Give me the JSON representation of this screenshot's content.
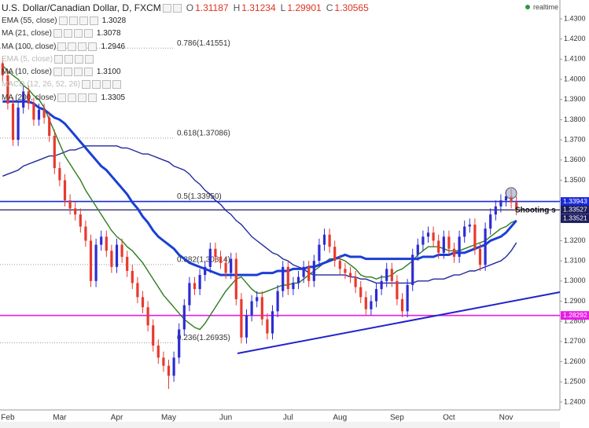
{
  "legend": {
    "symbol": "U.S. Dollar/Canadian Dollar, D, FXCM",
    "ohlc": [
      {
        "k": "O",
        "v": "1.31187"
      },
      {
        "k": "H",
        "v": "1.31234"
      },
      {
        "k": "L",
        "v": "1.29901"
      },
      {
        "k": "C",
        "v": "1.30565"
      }
    ],
    "indicators": [
      {
        "name": "EMA (55, close)",
        "value": "1.3028",
        "faded": false
      },
      {
        "name": "MA (21, close)",
        "value": "1.3078",
        "faded": false
      },
      {
        "name": "MA (100, close)",
        "value": "1.2946",
        "faded": false
      },
      {
        "name": "EMA (5, close)",
        "faded": true
      },
      {
        "name": "MA (10, close)",
        "value": "1.3100",
        "faded": false
      },
      {
        "name": "MACD (12, 26, 52, 26)",
        "faded": true
      },
      {
        "name": "MA (200, close)",
        "value": "1.3305",
        "faded": false
      }
    ],
    "status": "realtime"
  },
  "chart_data": {
    "type": "candlestick",
    "categories": [
      null,
      "Feb",
      null,
      null,
      null,
      null,
      null,
      null,
      null,
      null,
      null,
      "Mar",
      null,
      null,
      null,
      null,
      null,
      null,
      null,
      null,
      null,
      null,
      "Apr",
      null,
      null,
      null,
      null,
      null,
      null,
      null,
      null,
      null,
      "May",
      null,
      null,
      null,
      null,
      null,
      null,
      null,
      null,
      null,
      null,
      "Jun",
      null,
      null,
      null,
      null,
      null,
      null,
      null,
      null,
      null,
      null,
      null,
      "Jul",
      null,
      null,
      null,
      null,
      null,
      null,
      null,
      null,
      null,
      "Aug",
      null,
      null,
      null,
      null,
      null,
      null,
      null,
      null,
      null,
      null,
      "Sep",
      null,
      null,
      null,
      null,
      null,
      null,
      null,
      null,
      null,
      "Oct",
      null,
      null,
      null,
      null,
      null,
      null,
      null,
      null,
      null,
      null,
      "Nov",
      null,
      null
    ],
    "open": [
      1.408,
      1.402,
      1.388,
      1.37,
      1.386,
      1.394,
      1.388,
      1.38,
      1.385,
      1.381,
      1.372,
      1.356,
      1.35,
      1.34,
      1.336,
      1.333,
      1.327,
      1.32,
      1.3,
      1.318,
      1.322,
      1.315,
      1.307,
      1.318,
      1.312,
      1.305,
      1.299,
      1.292,
      1.287,
      1.278,
      1.268,
      1.262,
      1.258,
      1.253,
      1.262,
      1.276,
      1.288,
      1.299,
      1.296,
      1.303,
      1.307,
      1.316,
      1.312,
      1.309,
      1.304,
      1.311,
      1.291,
      1.272,
      1.283,
      1.29,
      1.292,
      1.281,
      1.274,
      1.285,
      1.295,
      1.307,
      1.296,
      1.299,
      1.302,
      1.307,
      1.3,
      1.31,
      1.318,
      1.323,
      1.317,
      1.31,
      1.306,
      1.304,
      1.302,
      1.297,
      1.292,
      1.286,
      1.29,
      1.296,
      1.3,
      1.306,
      1.3,
      1.291,
      1.285,
      1.298,
      1.313,
      1.318,
      1.322,
      1.324,
      1.32,
      1.314,
      1.322,
      1.316,
      1.312,
      1.322,
      1.327,
      1.328,
      1.316,
      1.308,
      1.326,
      1.333,
      1.337,
      1.34,
      1.342,
      1.339
    ],
    "high": [
      1.411,
      1.405,
      1.391,
      1.389,
      1.397,
      1.397,
      1.391,
      1.388,
      1.388,
      1.384,
      1.375,
      1.359,
      1.353,
      1.343,
      1.339,
      1.336,
      1.33,
      1.323,
      1.321,
      1.325,
      1.325,
      1.318,
      1.321,
      1.321,
      1.315,
      1.308,
      1.302,
      1.295,
      1.29,
      1.281,
      1.271,
      1.265,
      1.261,
      1.265,
      1.279,
      1.291,
      1.302,
      1.302,
      1.306,
      1.31,
      1.319,
      1.319,
      1.315,
      1.312,
      1.314,
      1.314,
      1.294,
      1.286,
      1.293,
      1.295,
      1.295,
      1.284,
      1.288,
      1.298,
      1.31,
      1.31,
      1.302,
      1.305,
      1.31,
      1.31,
      1.313,
      1.321,
      1.326,
      1.326,
      1.32,
      1.313,
      1.309,
      1.307,
      1.305,
      1.3,
      1.295,
      1.293,
      1.299,
      1.303,
      1.309,
      1.309,
      1.303,
      1.294,
      1.301,
      1.316,
      1.321,
      1.325,
      1.327,
      1.327,
      1.323,
      1.325,
      1.325,
      1.319,
      1.325,
      1.33,
      1.331,
      1.331,
      1.319,
      1.329,
      1.336,
      1.34,
      1.343,
      1.345,
      1.3455,
      1.342
    ],
    "low": [
      1.399,
      1.385,
      1.367,
      1.367,
      1.383,
      1.385,
      1.377,
      1.377,
      1.378,
      1.369,
      1.353,
      1.347,
      1.337,
      1.333,
      1.33,
      1.324,
      1.317,
      1.297,
      1.297,
      1.315,
      1.312,
      1.304,
      1.304,
      1.309,
      1.302,
      1.296,
      1.289,
      1.284,
      1.275,
      1.265,
      1.259,
      1.255,
      1.2465,
      1.25,
      1.259,
      1.273,
      1.285,
      1.293,
      1.293,
      1.3,
      1.304,
      1.309,
      1.306,
      1.301,
      1.301,
      1.288,
      1.269,
      1.269,
      1.28,
      1.287,
      1.278,
      1.271,
      1.271,
      1.282,
      1.292,
      1.293,
      1.293,
      1.296,
      1.299,
      1.297,
      1.297,
      1.307,
      1.315,
      1.314,
      1.307,
      1.303,
      1.301,
      1.299,
      1.294,
      1.289,
      1.283,
      1.283,
      1.287,
      1.293,
      1.297,
      1.297,
      1.288,
      1.282,
      1.282,
      1.295,
      1.31,
      1.315,
      1.319,
      1.317,
      1.311,
      1.311,
      1.313,
      1.309,
      1.309,
      1.319,
      1.324,
      1.313,
      1.305,
      1.305,
      1.323,
      1.33,
      1.334,
      1.337,
      1.336,
      1.3327
    ],
    "close": [
      1.402,
      1.388,
      1.37,
      1.386,
      1.394,
      1.388,
      1.38,
      1.385,
      1.381,
      1.372,
      1.356,
      1.35,
      1.34,
      1.336,
      1.333,
      1.327,
      1.32,
      1.3,
      1.318,
      1.322,
      1.315,
      1.307,
      1.318,
      1.312,
      1.305,
      1.299,
      1.292,
      1.287,
      1.278,
      1.268,
      1.262,
      1.258,
      1.253,
      1.262,
      1.276,
      1.288,
      1.299,
      1.296,
      1.303,
      1.307,
      1.316,
      1.312,
      1.309,
      1.304,
      1.311,
      1.291,
      1.272,
      1.283,
      1.29,
      1.292,
      1.281,
      1.274,
      1.285,
      1.295,
      1.307,
      1.296,
      1.299,
      1.302,
      1.307,
      1.3,
      1.31,
      1.318,
      1.323,
      1.317,
      1.31,
      1.306,
      1.304,
      1.302,
      1.297,
      1.292,
      1.286,
      1.29,
      1.296,
      1.3,
      1.306,
      1.3,
      1.291,
      1.285,
      1.298,
      1.313,
      1.318,
      1.322,
      1.324,
      1.32,
      1.314,
      1.322,
      1.316,
      1.312,
      1.322,
      1.327,
      1.328,
      1.316,
      1.308,
      1.326,
      1.333,
      1.337,
      1.34,
      1.342,
      1.339,
      1.3357
    ],
    "up_color": "#2c2cd4",
    "down_color": "#e8392e",
    "series": [
      {
        "color": "#1f2a9c",
        "width": 1.4,
        "values": [
          1.352,
          1.353,
          1.354,
          1.355,
          1.357,
          1.358,
          1.359,
          1.36,
          1.361,
          1.362,
          1.362,
          1.363,
          1.364,
          1.365,
          1.365,
          1.366,
          1.367,
          1.367,
          1.367,
          1.367,
          1.367,
          1.367,
          1.367,
          1.366,
          1.366,
          1.365,
          1.364,
          1.363,
          1.363,
          1.362,
          1.361,
          1.36,
          1.359,
          1.357,
          1.356,
          1.355,
          1.353,
          1.35,
          1.348,
          1.345,
          1.343,
          1.34,
          1.338,
          1.335,
          1.333,
          1.33,
          1.328,
          1.325,
          1.322,
          1.32,
          1.318,
          1.316,
          1.314,
          1.313,
          1.311,
          1.31,
          1.308,
          1.307,
          1.306,
          1.304,
          1.303,
          1.303,
          1.303,
          1.303,
          1.303,
          1.303,
          1.303,
          1.302,
          1.302,
          1.301,
          1.301,
          1.3,
          1.299,
          1.299,
          1.299,
          1.299,
          1.299,
          1.299,
          1.299,
          1.299,
          1.3,
          1.3,
          1.3,
          1.301,
          1.301,
          1.301,
          1.302,
          1.303,
          1.303,
          1.304,
          1.305,
          1.305,
          1.306,
          1.307,
          1.308,
          1.309,
          1.31,
          1.312,
          1.315,
          1.319
        ]
      },
      {
        "color": "#2e7d1e",
        "width": 1.4,
        "values": [
          1.407,
          1.404,
          1.402,
          1.4,
          1.397,
          1.395,
          1.392,
          1.39,
          1.386,
          1.38,
          1.374,
          1.368,
          1.362,
          1.358,
          1.354,
          1.35,
          1.345,
          1.341,
          1.337,
          1.333,
          1.329,
          1.325,
          1.322,
          1.32,
          1.317,
          1.315,
          1.312,
          1.309,
          1.305,
          1.301,
          1.297,
          1.293,
          1.29,
          1.287,
          1.284,
          1.281,
          1.279,
          1.277,
          1.276,
          1.279,
          1.283,
          1.287,
          1.291,
          1.295,
          1.298,
          1.301,
          1.302,
          1.299,
          1.296,
          1.294,
          1.294,
          1.295,
          1.296,
          1.297,
          1.298,
          1.298,
          1.299,
          1.299,
          1.301,
          1.303,
          1.305,
          1.307,
          1.309,
          1.311,
          1.311,
          1.311,
          1.31,
          1.308,
          1.306,
          1.303,
          1.302,
          1.302,
          1.301,
          1.302,
          1.302,
          1.303,
          1.305,
          1.306,
          1.308,
          1.31,
          1.313,
          1.315,
          1.317,
          1.317,
          1.317,
          1.316,
          1.315,
          1.315,
          1.315,
          1.316,
          1.317,
          1.318,
          1.319,
          1.32,
          1.322,
          1.324,
          1.326,
          1.327,
          1.329,
          1.33
        ]
      },
      {
        "color": "#1a3fd6",
        "width": 3,
        "values": [
          1.389,
          1.389,
          1.389,
          1.389,
          1.389,
          1.389,
          1.388,
          1.386,
          1.385,
          1.383,
          1.381,
          1.38,
          1.378,
          1.375,
          1.372,
          1.369,
          1.366,
          1.363,
          1.36,
          1.357,
          1.355,
          1.352,
          1.349,
          1.346,
          1.343,
          1.339,
          1.336,
          1.332,
          1.329,
          1.325,
          1.322,
          1.32,
          1.318,
          1.316,
          1.313,
          1.311,
          1.309,
          1.308,
          1.307,
          1.306,
          1.305,
          1.304,
          1.303,
          1.303,
          1.303,
          1.303,
          1.303,
          1.303,
          1.303,
          1.303,
          1.304,
          1.304,
          1.304,
          1.305,
          1.305,
          1.305,
          1.306,
          1.306,
          1.306,
          1.307,
          1.307,
          1.308,
          1.309,
          1.31,
          1.311,
          1.312,
          1.313,
          1.312,
          1.312,
          1.312,
          1.311,
          1.311,
          1.311,
          1.311,
          1.311,
          1.311,
          1.311,
          1.311,
          1.311,
          1.311,
          1.311,
          1.312,
          1.312,
          1.312,
          1.313,
          1.313,
          1.313,
          1.314,
          1.314,
          1.314,
          1.315,
          1.316,
          1.317,
          1.318,
          1.32,
          1.321,
          1.322,
          1.324,
          1.327,
          1.33
        ]
      }
    ],
    "fib_levels": [
      {
        "label": "0.786(1.41551)",
        "value": 1.41551
      },
      {
        "label": "0.618(1.37086)",
        "value": 1.37086
      },
      {
        "label": "0.5(1.33950)",
        "value": 1.3395
      },
      {
        "label": "0.382(1.30814)",
        "value": 1.30814
      },
      {
        "label": "0.236(1.26935)",
        "value": 1.26935
      }
    ],
    "levels": [
      {
        "value": 1.33943,
        "color": "#1a2ad6"
      },
      {
        "value": 1.33527,
        "color": "#1d1d5e"
      },
      {
        "value": 1.33521,
        "color": "#1d1d5e"
      },
      {
        "value": 1.28292,
        "color": "#e61ee6"
      }
    ],
    "annotation": "Shooting s",
    "ylim": [
      1.23607,
      1.43935
    ],
    "yticks": [
      {
        "value": 1.24,
        "label": "1.2400"
      },
      {
        "value": 1.25,
        "label": "1.2500"
      },
      {
        "value": 1.26,
        "label": "1.2600"
      },
      {
        "value": 1.27,
        "label": "1.2700"
      },
      {
        "value": 1.28,
        "label": "1.2800"
      },
      {
        "value": 1.29,
        "label": "1.2900"
      },
      {
        "value": 1.3,
        "label": "1.3000"
      },
      {
        "value": 1.31,
        "label": "1.3100"
      },
      {
        "value": 1.32,
        "label": "1.3200"
      },
      {
        "value": 1.33,
        "label": "1.3300"
      },
      {
        "value": 1.34,
        "label": "1.3400"
      },
      {
        "value": 1.35,
        "label": "1.3500"
      },
      {
        "value": 1.36,
        "label": "1.3600"
      },
      {
        "value": 1.37,
        "label": "1.3700"
      },
      {
        "value": 1.38,
        "label": "1.3800"
      },
      {
        "value": 1.39,
        "label": "1.3900"
      },
      {
        "value": 1.4,
        "label": "1.4000"
      },
      {
        "value": 1.41,
        "label": "1.4100"
      },
      {
        "value": 1.42,
        "label": "1.4200"
      },
      {
        "value": 1.43,
        "label": "1.4300"
      }
    ]
  }
}
